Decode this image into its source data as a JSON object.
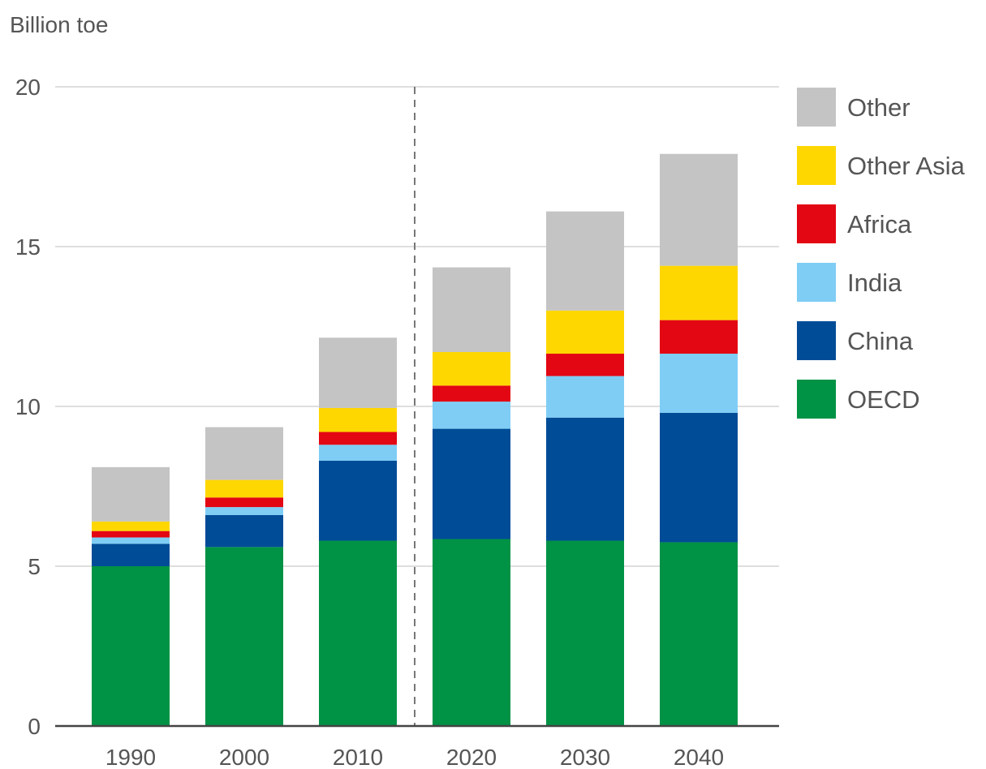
{
  "chart_data": {
    "type": "bar",
    "stacked": true,
    "ylabel": "Billion toe",
    "ylim": [
      0,
      20
    ],
    "yticks": [
      0,
      5,
      10,
      15,
      20
    ],
    "grid": true,
    "legend_position": "right",
    "projection_divider_after": "2010",
    "categories": [
      "1990",
      "2000",
      "2010",
      "2020",
      "2030",
      "2040"
    ],
    "series": [
      {
        "name": "OECD",
        "color": "#009245",
        "values": [
          5.0,
          5.6,
          5.8,
          5.85,
          5.8,
          5.75
        ]
      },
      {
        "name": "China",
        "color": "#004C97",
        "values": [
          0.7,
          1.0,
          2.5,
          3.45,
          3.85,
          4.05
        ]
      },
      {
        "name": "India",
        "color": "#7FCDF5",
        "values": [
          0.2,
          0.25,
          0.5,
          0.85,
          1.3,
          1.85
        ]
      },
      {
        "name": "Africa",
        "color": "#E30613",
        "values": [
          0.2,
          0.3,
          0.4,
          0.5,
          0.7,
          1.05
        ]
      },
      {
        "name": "Other Asia",
        "color": "#FFD700",
        "values": [
          0.3,
          0.55,
          0.75,
          1.05,
          1.35,
          1.7
        ]
      },
      {
        "name": "Other",
        "color": "#C4C4C4",
        "values": [
          1.7,
          1.65,
          2.2,
          2.65,
          3.1,
          3.5
        ]
      }
    ]
  }
}
